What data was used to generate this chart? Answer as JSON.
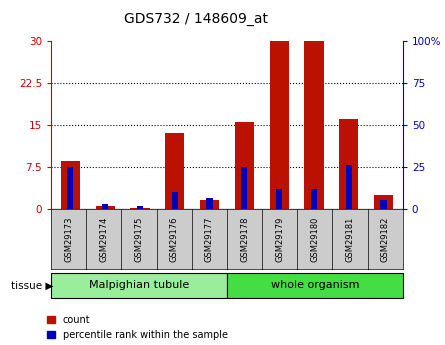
{
  "title": "GDS732 / 148609_at",
  "samples": [
    "GSM29173",
    "GSM29174",
    "GSM29175",
    "GSM29176",
    "GSM29177",
    "GSM29178",
    "GSM29179",
    "GSM29180",
    "GSM29181",
    "GSM29182"
  ],
  "count": [
    8.5,
    0.5,
    0.2,
    13.5,
    1.5,
    15.5,
    30.0,
    30.0,
    16.0,
    2.5
  ],
  "percentile": [
    25.0,
    3.0,
    1.5,
    10.0,
    6.5,
    25.0,
    12.0,
    12.0,
    26.0,
    5.5
  ],
  "tissue_groups": [
    {
      "label": "Malpighian tubule",
      "start": 0,
      "end": 5,
      "color": "#99ee99"
    },
    {
      "label": "whole organism",
      "start": 5,
      "end": 10,
      "color": "#44dd44"
    }
  ],
  "y_left_ticks": [
    0,
    7.5,
    15,
    22.5,
    30
  ],
  "y_left_ticklabels": [
    "0",
    "7.5",
    "15",
    "22.5",
    "30"
  ],
  "y_right_ticks": [
    0,
    25,
    50,
    75,
    100
  ],
  "y_right_ticklabels": [
    "0",
    "25",
    "50",
    "75",
    "100%"
  ],
  "ylim_left": [
    0,
    30
  ],
  "ylim_right": [
    0,
    100
  ],
  "bar_color": "#bb1100",
  "percentile_color": "#0000bb",
  "bar_width": 0.55,
  "percentile_bar_width": 0.18,
  "legend_count_label": "count",
  "legend_percentile_label": "percentile rank within the sample",
  "tissue_label": "tissue",
  "grid_color": "#000000",
  "xticklabel_bg": "#cccccc",
  "left_color": "#cc0000",
  "right_color": "#0000cc"
}
